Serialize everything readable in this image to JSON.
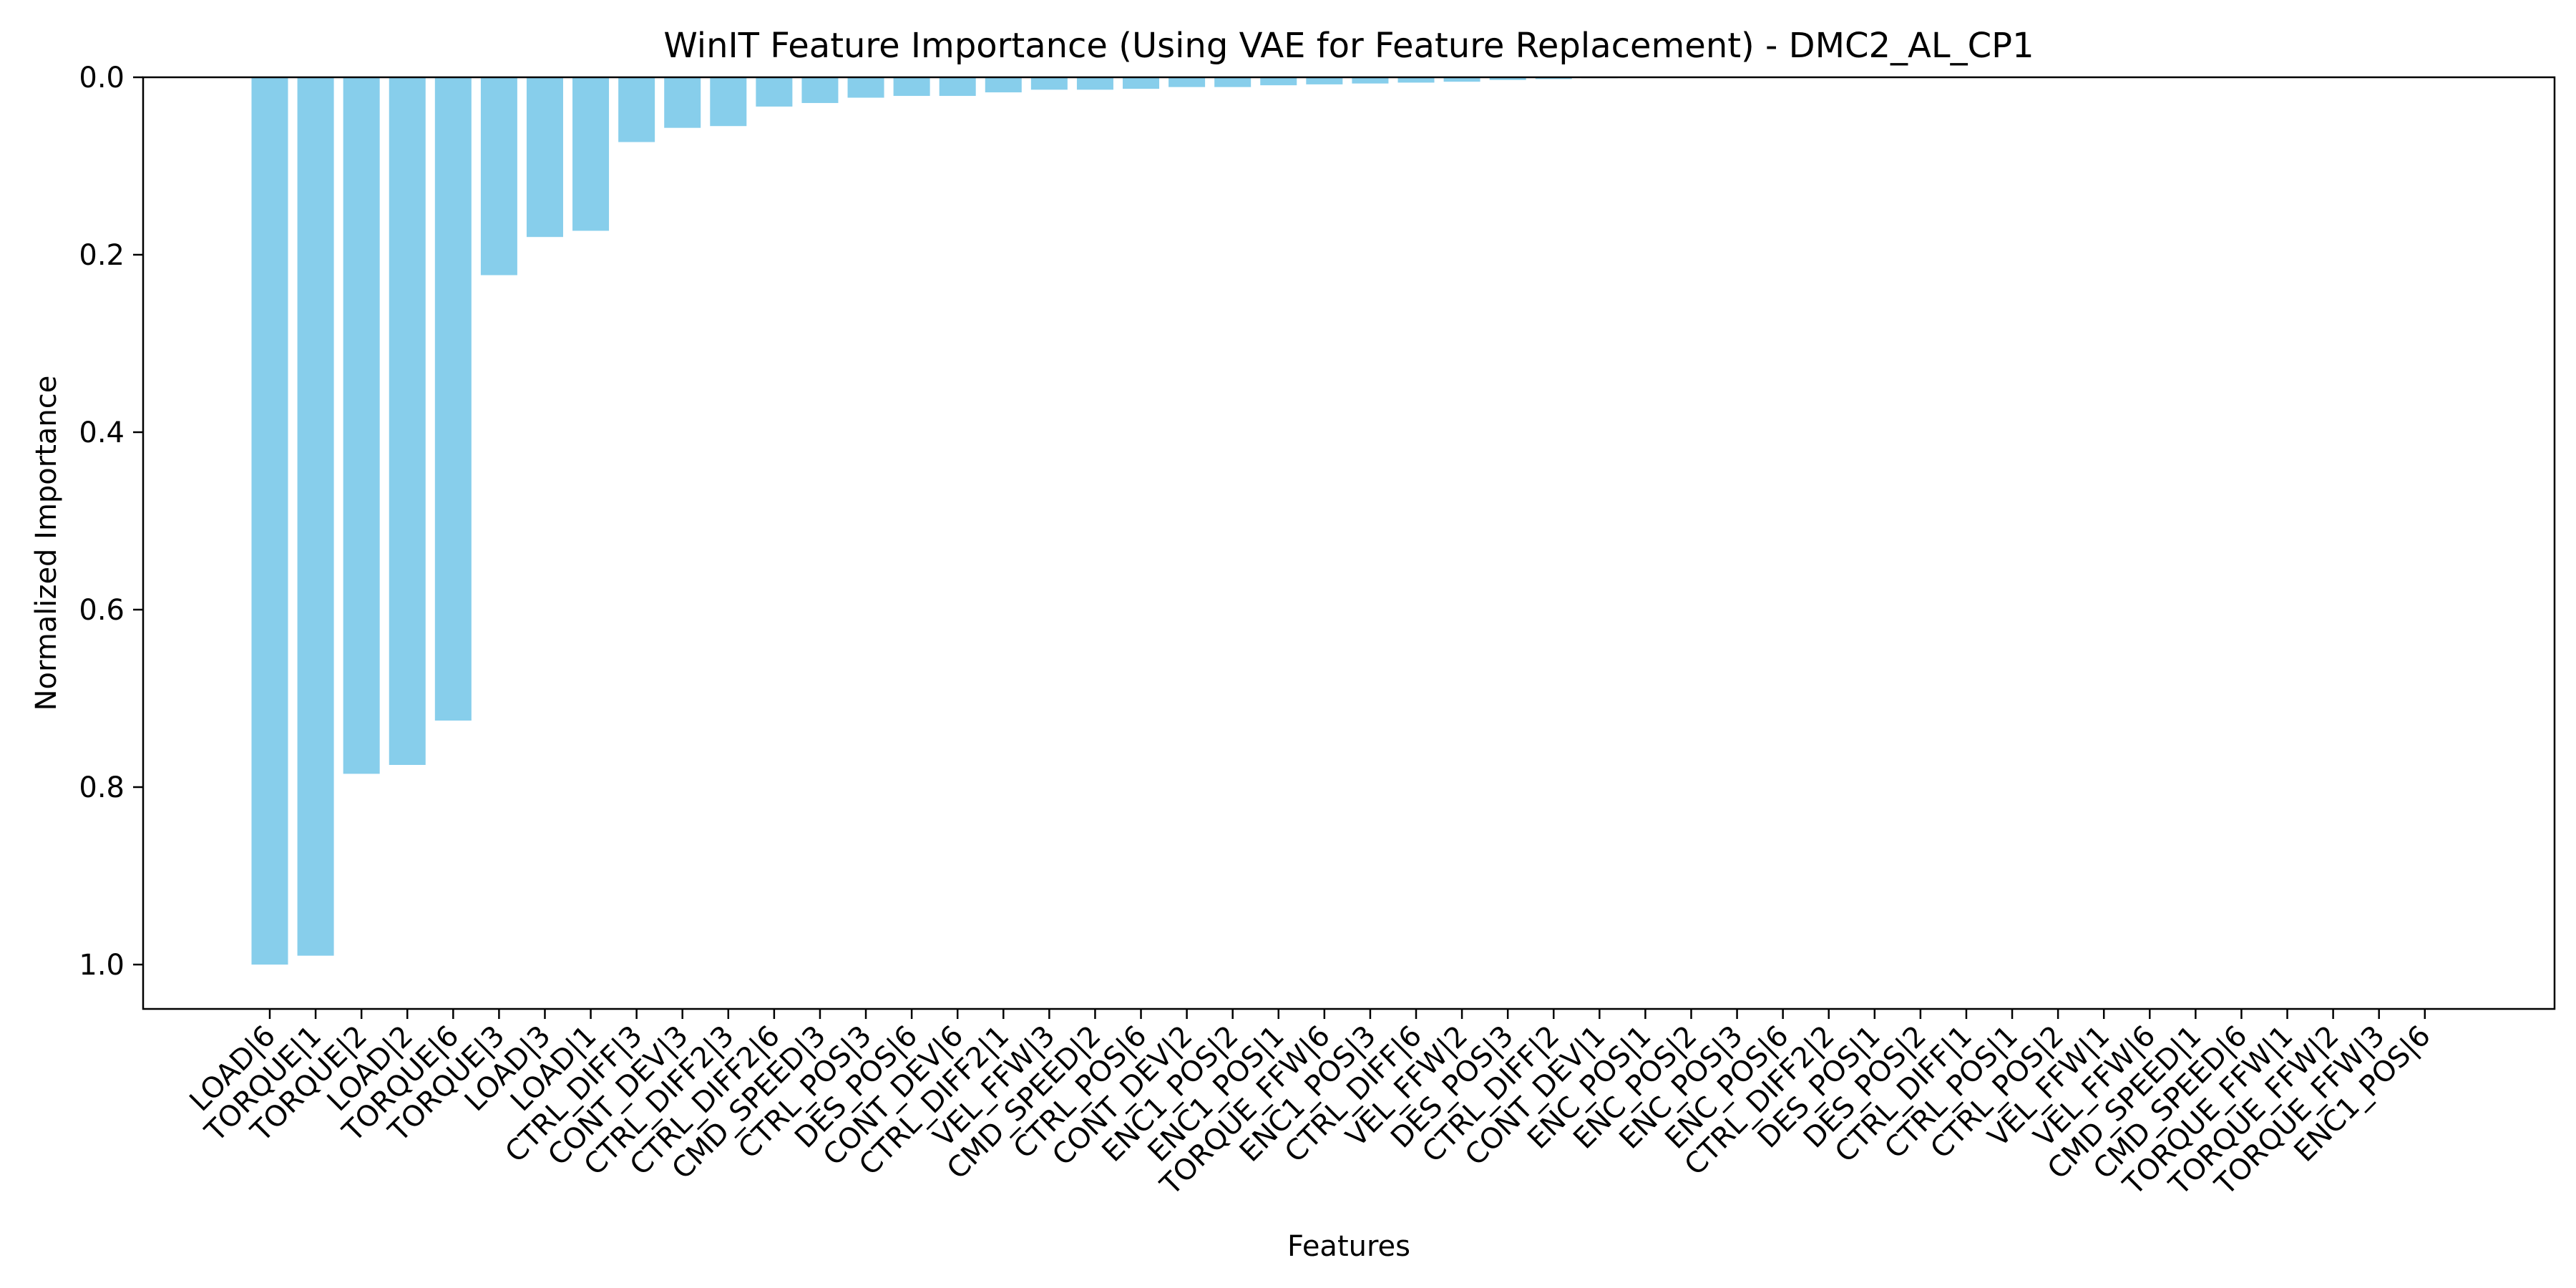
{
  "chart_data": {
    "type": "bar",
    "title": "WinIT Feature Importance (Using VAE for Feature Replacement) - DMC2_AL_CP1",
    "xlabel": "Features",
    "ylabel": "Normalized Importance",
    "ylim": [
      0,
      1.05
    ],
    "y_inverted": true,
    "yticks": [
      "0.0",
      "0.2",
      "0.4",
      "0.6",
      "0.8",
      "1.0"
    ],
    "ytick_values": [
      0,
      0.2,
      0.4,
      0.6,
      0.8,
      1.0
    ],
    "grid": false,
    "bar_color": "#87ceeb",
    "categories": [
      "LOAD|6",
      "TORQUE|1",
      "TORQUE|2",
      "LOAD|2",
      "TORQUE|6",
      "TORQUE|3",
      "LOAD|3",
      "LOAD|1",
      "CTRL_DIFF|3",
      "CONT_DEV|3",
      "CTRL_DIFF2|3",
      "CTRL_DIFF2|6",
      "CMD_SPEED|3",
      "CTRL_POS|3",
      "DES_POS|6",
      "CONT_DEV|6",
      "CTRL_DIFF2|1",
      "VEL_FFW|3",
      "CMD_SPEED|2",
      "CTRL_POS|6",
      "CONT_DEV|2",
      "ENC1_POS|2",
      "ENC1_POS|1",
      "TORQUE_FFW|6",
      "ENC1_POS|3",
      "CTRL_DIFF|6",
      "VEL_FFW|2",
      "DES_POS|3",
      "CTRL_DIFF|2",
      "CONT_DEV|1",
      "ENC_POS|1",
      "ENC_POS|2",
      "ENC_POS|3",
      "ENC_POS|6",
      "CTRL_DIFF2|2",
      "DES_POS|1",
      "DES_POS|2",
      "CTRL_DIFF|1",
      "CTRL_POS|1",
      "CTRL_POS|2",
      "VEL_FFW|1",
      "VEL_FFW|6",
      "CMD_SPEED|1",
      "CMD_SPEED|6",
      "TORQUE_FFW|1",
      "TORQUE_FFW|2",
      "TORQUE_FFW|3",
      "ENC1_POS|6"
    ],
    "values": [
      1.0,
      0.99,
      0.785,
      0.775,
      0.725,
      0.223,
      0.18,
      0.173,
      0.073,
      0.057,
      0.055,
      0.033,
      0.029,
      0.023,
      0.021,
      0.021,
      0.017,
      0.014,
      0.014,
      0.013,
      0.011,
      0.011,
      0.009,
      0.008,
      0.007,
      0.006,
      0.005,
      0.003,
      0.002,
      0.001,
      0.0,
      0.0,
      0.0,
      0.0,
      0.0,
      0.0,
      0.0,
      0.0,
      0.0,
      0.0,
      0.0,
      0.0,
      0.0,
      0.0,
      0.0,
      0.0,
      0.0,
      0.0
    ]
  }
}
